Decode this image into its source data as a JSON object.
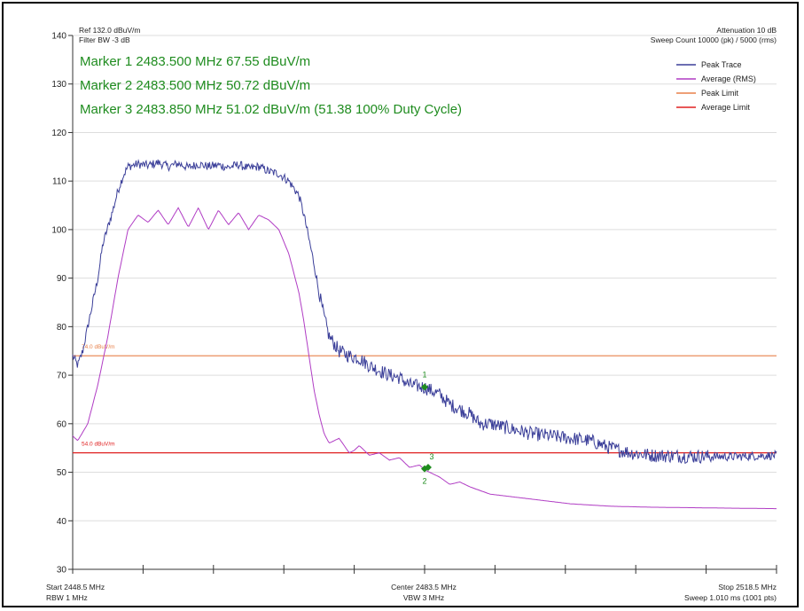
{
  "header": {
    "ref": "Ref 132.0 dBuV/m",
    "filter_bw": "Filter BW -3 dB",
    "attenuation": "Attenuation 10 dB",
    "sweep_count": "Sweep Count 10000 (pk) / 5000 (rms)"
  },
  "markers_text": [
    "Marker 1 2483.500 MHz 67.55 dBuV/m",
    "Marker 2 2483.500 MHz 50.72 dBuV/m",
    "Marker 3 2483.850 MHz 51.02 dBuV/m (51.38 100% Duty Cycle)"
  ],
  "footer": {
    "start": "Start 2448.5 MHz",
    "rbw": "RBW 1 MHz",
    "center": "Center 2483.5 MHz",
    "vbw": "VBW 3 MHz",
    "stop": "Stop 2518.5 MHz",
    "sweep": "Sweep 1.010 ms (1001 pts)"
  },
  "limit_labels": {
    "peak": "74.0 dBuV/m",
    "average": "54.0 dBuV/m"
  },
  "colors": {
    "peak_trace": "#3b3f99",
    "average_trace": "#b03cc4",
    "peak_limit": "#e8804a",
    "average_limit": "#e02020",
    "marker": "#1f8c1f",
    "grid": "#dddddd"
  },
  "chart_data": {
    "type": "line",
    "title": "",
    "x_unit": "MHz",
    "y_unit": "dBuV/m",
    "xlim": [
      2448.5,
      2518.5
    ],
    "ylim": [
      30,
      140
    ],
    "y_ticks": [
      30,
      40,
      50,
      60,
      70,
      80,
      90,
      100,
      110,
      120,
      130,
      140
    ],
    "x_ticks": [
      2448.5,
      2455.5,
      2462.5,
      2469.5,
      2476.5,
      2483.5,
      2490.5,
      2497.5,
      2504.5,
      2511.5,
      2518.5
    ],
    "grid": "horizontal",
    "legend_position": "top-right",
    "legend": [
      "Peak Trace",
      "Average (RMS)",
      "Peak Limit",
      "Average Limit"
    ],
    "series": [
      {
        "name": "Peak Trace",
        "x": [
          2448.5,
          2449.0,
          2449.5,
          2450.0,
          2451.0,
          2451.5,
          2452.5,
          2453.0,
          2453.5,
          2454.0,
          2455.0,
          2456.0,
          2457.0,
          2458.0,
          2459.0,
          2460.0,
          2461.0,
          2462.0,
          2463.0,
          2464.0,
          2465.0,
          2466.0,
          2467.0,
          2468.0,
          2469.0,
          2470.0,
          2471.0,
          2471.5,
          2472.0,
          2472.5,
          2473.0,
          2473.5,
          2474.0,
          2475.0,
          2476.0,
          2477.0,
          2478.0,
          2479.0,
          2480.0,
          2481.0,
          2482.0,
          2483.5,
          2485.0,
          2486.0,
          2487.0,
          2488.0,
          2489.0,
          2490.0,
          2492.0,
          2494.0,
          2496.0,
          2498.0,
          2500.0,
          2502.0,
          2504.0,
          2506.0,
          2510.0,
          2514.0,
          2518.5
        ],
        "y": [
          74,
          72,
          75,
          80,
          90,
          97,
          104,
          108,
          111,
          113,
          113.5,
          113.2,
          113.8,
          113,
          113.6,
          112.8,
          113.5,
          113,
          113.3,
          112.8,
          113.4,
          112.6,
          113,
          112,
          111.5,
          110,
          107,
          103,
          98,
          93,
          87,
          82,
          78,
          75,
          74,
          73.5,
          72,
          71,
          70,
          69.5,
          68,
          67.5,
          66,
          64,
          63,
          62,
          60,
          60,
          59,
          58,
          57.5,
          57,
          56.5,
          55,
          54,
          53.5,
          53.3,
          53.2,
          53.5
        ]
      },
      {
        "name": "Average (RMS)",
        "x": [
          2448.5,
          2449.0,
          2450.0,
          2451.0,
          2452.0,
          2453.0,
          2454.0,
          2455.0,
          2456.0,
          2457.0,
          2458.0,
          2459.0,
          2460.0,
          2461.0,
          2462.0,
          2463.0,
          2464.0,
          2465.0,
          2466.0,
          2467.0,
          2468.0,
          2469.0,
          2470.0,
          2471.0,
          2471.5,
          2472.0,
          2472.5,
          2473.0,
          2473.5,
          2474.0,
          2474.5,
          2475.0,
          2475.5,
          2476.0,
          2476.5,
          2477.0,
          2478.0,
          2479.0,
          2480.0,
          2481.0,
          2482.0,
          2483.0,
          2483.5,
          2484.0,
          2485.0,
          2486.0,
          2487.0,
          2488.0,
          2490.0,
          2492.0,
          2494.0,
          2496.0,
          2498.0,
          2502.0,
          2506.0,
          2510.0,
          2514.0,
          2518.5
        ],
        "y": [
          57.5,
          56.5,
          60,
          68,
          78,
          90,
          100,
          103,
          101.5,
          104,
          101,
          104.5,
          100.5,
          104.5,
          100,
          104,
          101,
          103.5,
          100,
          103,
          102,
          100,
          95,
          87,
          81,
          74,
          67,
          62,
          58,
          56,
          56.5,
          57,
          55.5,
          54,
          54.5,
          55.5,
          53.5,
          54,
          52.5,
          53,
          51,
          51.5,
          50.5,
          50,
          49,
          47.5,
          48,
          47,
          45.5,
          45,
          44.5,
          44,
          43.5,
          43,
          42.8,
          42.7,
          42.6,
          42.5
        ]
      },
      {
        "name": "Peak Limit",
        "x": [
          2448.5,
          2518.5
        ],
        "y": [
          74,
          74
        ]
      },
      {
        "name": "Average Limit",
        "x": [
          2448.5,
          2518.5
        ],
        "y": [
          54,
          54
        ]
      }
    ],
    "markers": [
      {
        "label": "1",
        "x": 2483.5,
        "y": 67.55
      },
      {
        "label": "2",
        "x": 2483.5,
        "y": 50.72
      },
      {
        "label": "3",
        "x": 2483.85,
        "y": 51.02
      }
    ]
  }
}
